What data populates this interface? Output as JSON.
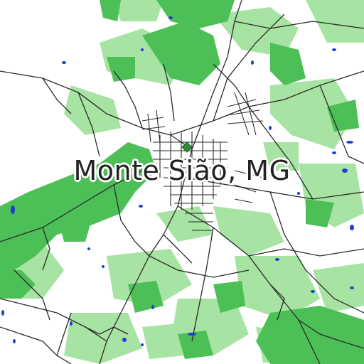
{
  "map": {
    "label": "Monte Sião, MG",
    "colors": {
      "background": "#ffffff",
      "forest_dark": "#4cbf56",
      "forest_light": "#a7e3a2",
      "roads": "#2a2a2a",
      "water": "#1f3fd1",
      "center_marker": "#2e8b3a"
    }
  }
}
